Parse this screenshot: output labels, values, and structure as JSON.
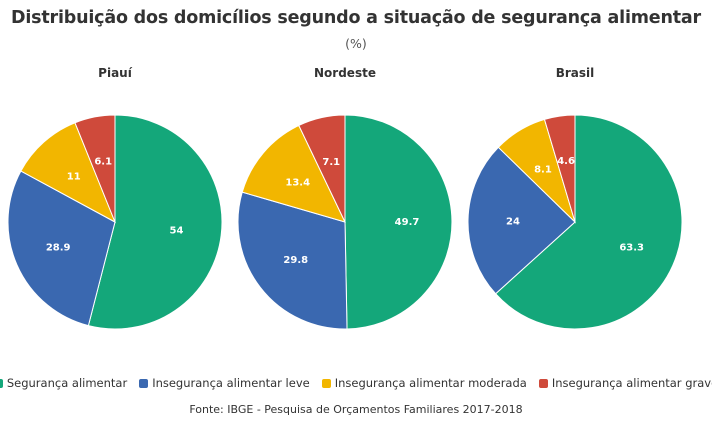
{
  "title": "Distribuição dos domicílios segundo a situação de segurança alimentar",
  "subtitle": "(%)",
  "source": "Fonte: IBGE - Pesquisa de Orçamentos Familiares 2017-2018",
  "chart_data": {
    "type": "pie",
    "categories": [
      "Segurança alimentar",
      "Insegurança alimentar leve",
      "Insegurança alimentar moderada",
      "Insegurança alimentar grave"
    ],
    "colors": [
      "#14a77a",
      "#3a68b0",
      "#f2b600",
      "#cf4a3b"
    ],
    "legend_position": "bottom",
    "pies": [
      {
        "name": "Piauí",
        "values": [
          54,
          28.9,
          11,
          6.1
        ]
      },
      {
        "name": "Nordeste",
        "values": [
          49.7,
          29.8,
          13.4,
          7.1
        ]
      },
      {
        "name": "Brasil",
        "values": [
          63.3,
          24,
          8.1,
          4.6
        ]
      }
    ]
  }
}
